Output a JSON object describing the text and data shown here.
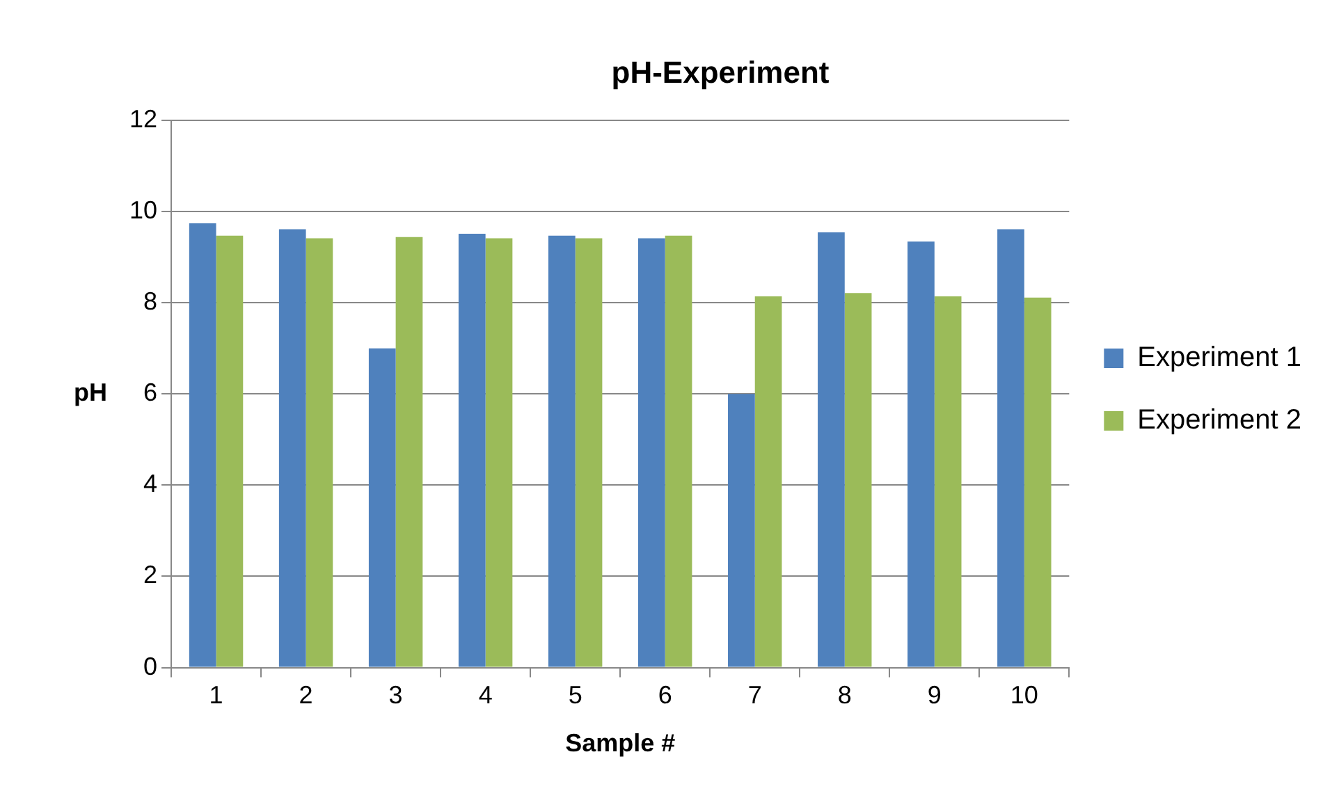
{
  "chart_data": {
    "type": "bar",
    "title": "pH-Experiment",
    "xlabel": "Sample #",
    "ylabel": "pH",
    "categories": [
      "1",
      "2",
      "3",
      "4",
      "5",
      "6",
      "7",
      "8",
      "9",
      "10"
    ],
    "series": [
      {
        "name": "Experiment 1",
        "color": "#4f81bd",
        "values": [
          9.74,
          9.61,
          7.0,
          9.51,
          9.47,
          9.41,
          6.0,
          9.54,
          9.34,
          9.61
        ]
      },
      {
        "name": "Experiment 2",
        "color": "#9bbb59",
        "values": [
          9.47,
          9.41,
          9.44,
          9.41,
          9.41,
          9.47,
          8.14,
          8.21,
          8.14,
          8.11
        ]
      }
    ],
    "ylim": [
      0,
      12
    ],
    "yticks": [
      0,
      2,
      4,
      6,
      8,
      10,
      12
    ],
    "grid": "y",
    "legend": "right"
  }
}
